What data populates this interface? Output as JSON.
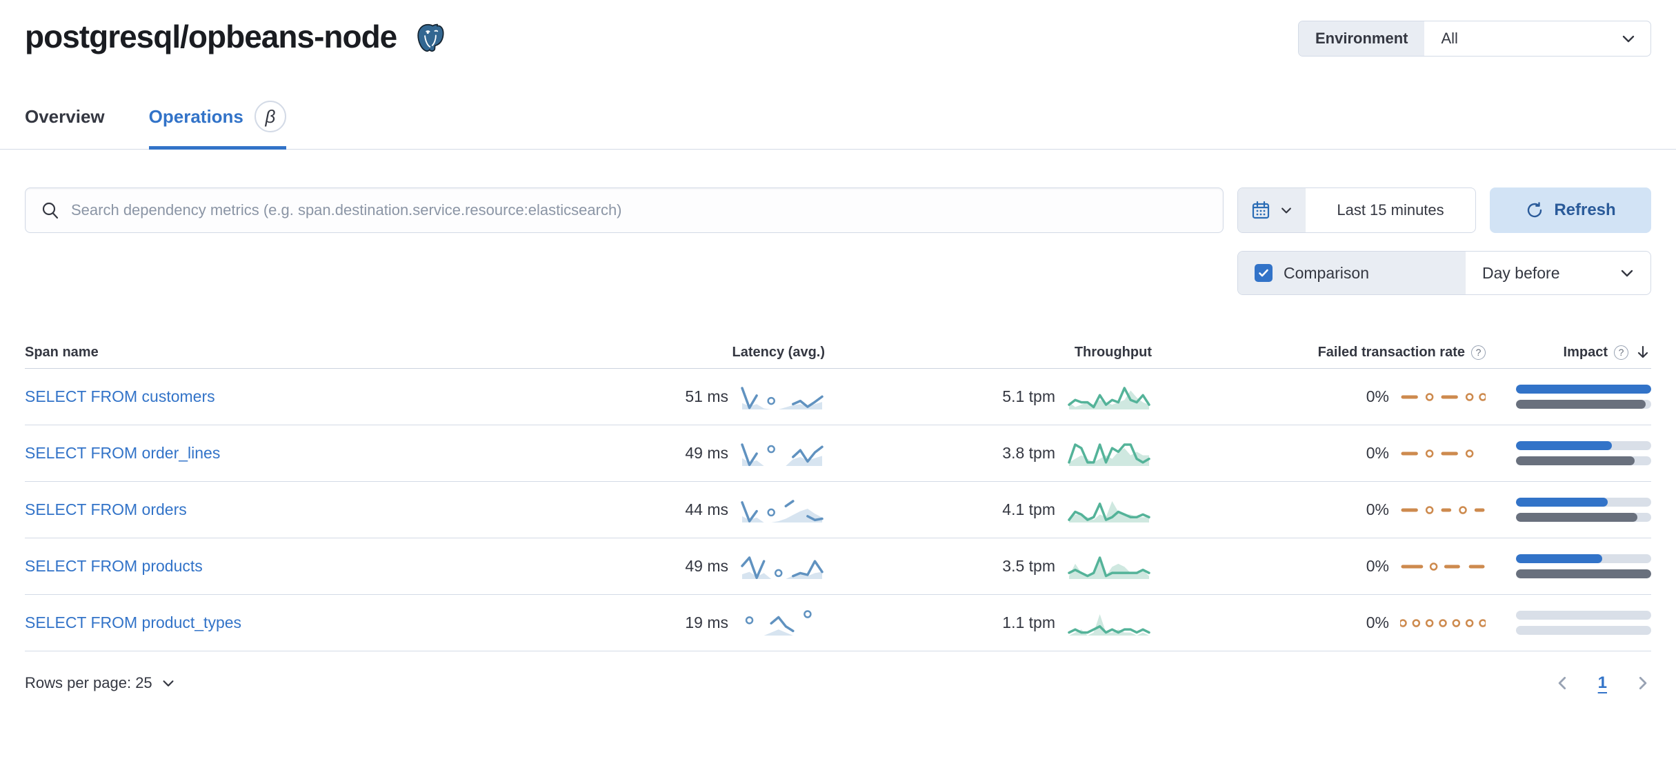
{
  "page": {
    "title": "postgresql/opbeans-node"
  },
  "environment": {
    "label": "Environment",
    "value": "All"
  },
  "tabs": {
    "overview": "Overview",
    "operations": "Operations",
    "beta": "β"
  },
  "search": {
    "placeholder": "Search dependency metrics (e.g. span.destination.service.resource:elasticsearch)"
  },
  "time": {
    "range": "Last 15 minutes",
    "refresh_label": "Refresh"
  },
  "comparison": {
    "label": "Comparison",
    "value": "Day before",
    "checked": true
  },
  "table": {
    "columns": {
      "span_name": "Span name",
      "latency": "Latency (avg.)",
      "throughput": "Throughput",
      "failed_rate": "Failed transaction rate",
      "impact": "Impact"
    },
    "rows": [
      {
        "span_name": "SELECT FROM customers",
        "latency": "51 ms",
        "throughput": "5.1 tpm",
        "failed_rate": "0%",
        "impact": {
          "current": 100,
          "previous": 96
        },
        "latency_spark": {
          "current": [
            40,
            3,
            26,
            null,
            16,
            null,
            null,
            10,
            16,
            5,
            14,
            24
          ],
          "previous": [
            12,
            6,
            10,
            2,
            0,
            0,
            4,
            8,
            10,
            6,
            10,
            14
          ]
        },
        "throughput_spark": {
          "current": [
            2,
            4,
            3,
            3,
            1,
            6,
            2,
            4,
            3,
            9,
            4,
            3,
            6,
            2
          ],
          "previous": [
            3,
            1,
            2,
            3,
            2,
            4,
            3,
            2,
            3,
            4,
            8,
            5,
            3,
            2
          ]
        },
        "failed_spark": {
          "current": [
            0,
            0,
            0,
            null,
            0,
            null,
            0,
            0,
            0,
            null,
            0,
            null,
            0
          ]
        }
      },
      {
        "span_name": "SELECT FROM order_lines",
        "latency": "49 ms",
        "throughput": "3.8 tpm",
        "failed_rate": "0%",
        "impact": {
          "current": 71,
          "previous": 88
        },
        "latency_spark": {
          "current": [
            38,
            2,
            22,
            null,
            30,
            null,
            null,
            16,
            28,
            8,
            24,
            34
          ],
          "previous": [
            14,
            6,
            10,
            0,
            0,
            0,
            0,
            12,
            16,
            10,
            14,
            18
          ]
        },
        "throughput_spark": {
          "current": [
            1,
            6,
            5,
            1,
            1,
            6,
            1,
            5,
            4,
            6,
            6,
            2,
            1,
            2
          ],
          "previous": [
            1,
            2,
            3,
            2,
            1,
            2,
            3,
            2,
            4,
            5,
            3,
            4,
            3,
            3
          ]
        },
        "failed_spark": {
          "current": [
            0,
            0,
            0,
            null,
            0,
            null,
            0,
            0,
            0,
            null,
            0,
            null,
            null
          ]
        }
      },
      {
        "span_name": "SELECT FROM orders",
        "latency": "44 ms",
        "throughput": "4.1 tpm",
        "failed_rate": "0%",
        "impact": {
          "current": 68,
          "previous": 90
        },
        "latency_spark": {
          "current": [
            32,
            2,
            18,
            null,
            16,
            null,
            26,
            34,
            null,
            10,
            4,
            6
          ],
          "previous": [
            10,
            4,
            8,
            0,
            0,
            2,
            6,
            12,
            18,
            22,
            14,
            8
          ]
        },
        "throughput_spark": {
          "current": [
            1,
            4,
            3,
            1,
            2,
            7,
            1,
            2,
            4,
            3,
            2,
            2,
            3,
            2
          ],
          "previous": [
            1,
            3,
            3,
            2,
            1,
            3,
            2,
            8,
            4,
            3,
            3,
            2,
            2,
            2
          ]
        },
        "failed_spark": {
          "current": [
            0,
            0,
            0,
            null,
            0,
            null,
            0,
            0,
            null,
            0,
            null,
            0,
            0
          ]
        }
      },
      {
        "span_name": "SELECT FROM products",
        "latency": "49 ms",
        "throughput": "3.5 tpm",
        "failed_rate": "0%",
        "impact": {
          "current": 64,
          "previous": 100
        },
        "latency_spark": {
          "current": [
            22,
            36,
            2,
            30,
            null,
            10,
            null,
            5,
            10,
            7,
            30,
            12
          ],
          "previous": [
            8,
            12,
            4,
            10,
            0,
            0,
            0,
            6,
            8,
            5,
            10,
            12
          ]
        },
        "throughput_spark": {
          "current": [
            2,
            3,
            2,
            1,
            2,
            7,
            1,
            2,
            2,
            2,
            2,
            2,
            3,
            2
          ],
          "previous": [
            1,
            5,
            2,
            1,
            2,
            7,
            1,
            4,
            5,
            4,
            2,
            2,
            3,
            1
          ]
        },
        "failed_spark": {
          "current": [
            0,
            0,
            0,
            0,
            null,
            0,
            null,
            0,
            0,
            0,
            null,
            0,
            0,
            0
          ]
        }
      },
      {
        "span_name": "SELECT FROM product_types",
        "latency": "19 ms",
        "throughput": "1.1 tpm",
        "failed_rate": "0%",
        "impact": {
          "current": 0,
          "previous": 0
        },
        "latency_spark": {
          "current": [
            null,
            10,
            null,
            null,
            8,
            12,
            6,
            3,
            null,
            14,
            null,
            null
          ],
          "previous": [
            0,
            0,
            0,
            0,
            2,
            4,
            2,
            0,
            0,
            0,
            0,
            0
          ]
        },
        "throughput_spark": {
          "current": [
            1,
            2,
            1,
            1,
            2,
            3,
            1,
            2,
            1,
            2,
            2,
            1,
            2,
            1
          ],
          "previous": [
            0,
            1,
            2,
            0,
            1,
            7,
            1,
            1,
            2,
            1,
            1,
            0,
            1,
            0
          ]
        },
        "failed_spark": {
          "current": [
            0,
            null,
            0,
            null,
            0,
            null,
            0,
            null,
            0,
            null,
            0,
            null,
            0
          ]
        }
      }
    ]
  },
  "footer": {
    "rows_per_page": "Rows per page: 25",
    "page": "1"
  },
  "colors": {
    "accent_blue": "#3273c8",
    "latency_line": "#6092c0",
    "latency_fill": "#d7e4f0",
    "throughput_line": "#54b399",
    "throughput_fill": "#cfe8e0",
    "failed_line": "#cd8a4e",
    "impact_current": "#3273c8",
    "impact_previous": "#69707d",
    "impact_track": "#d9dfe8"
  }
}
